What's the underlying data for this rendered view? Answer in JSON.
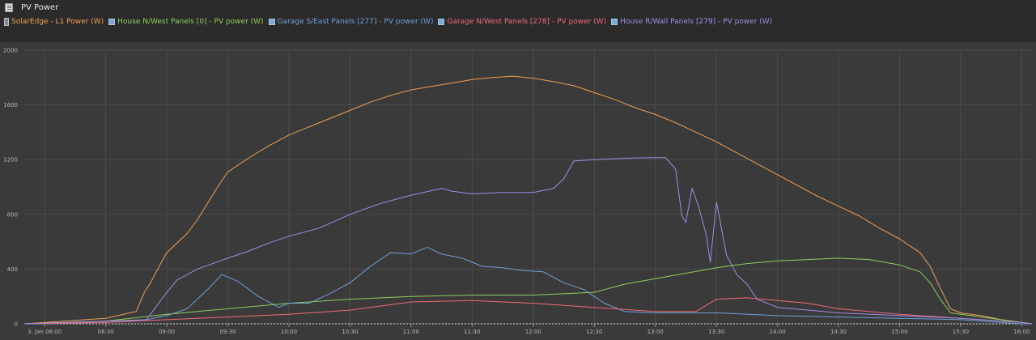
{
  "panel": {
    "title": "PV Power"
  },
  "legend": [
    {
      "label": "SolarEdge - L1 Power (W)",
      "color": "#f0a050",
      "icon": "battery-icon"
    },
    {
      "label": "House N/West Panels [0] - PV power (W)",
      "color": "#8fce5a",
      "icon": "panel-icon"
    },
    {
      "label": "Garage S/East Panels [277] - PV power (W)",
      "color": "#6fa0d8",
      "icon": "panel-icon"
    },
    {
      "label": "Garage N/West Panels [278] - PV power (W)",
      "color": "#f06a78",
      "icon": "panel-icon"
    },
    {
      "label": "House R/Wall Panels [279] - PV power (W)",
      "color": "#9d8fe6",
      "icon": "panel-icon"
    }
  ],
  "chart_data": {
    "type": "line",
    "title": "PV Power",
    "xlabel": "",
    "ylabel": "",
    "ylim": [
      0,
      2000
    ],
    "xlim": [
      "07:50",
      "16:05"
    ],
    "grid": true,
    "legend_position": "top-left",
    "y_ticks": [
      "0",
      "400",
      "800",
      "1200",
      "1600",
      "2000"
    ],
    "x_ticks": [
      "3. Jan 08:00",
      "08:30",
      "09:00",
      "09:30",
      "10:00",
      "10:30",
      "11:00",
      "11:30",
      "12:00",
      "12:30",
      "13:00",
      "13:30",
      "14:00",
      "14:30",
      "15:00",
      "15:30",
      "16:00"
    ],
    "series": [
      {
        "name": "SolarEdge - L1 Power (W)",
        "color": "#f0a050",
        "points": [
          [
            "07:50",
            0
          ],
          [
            "08:30",
            40
          ],
          [
            "08:45",
            90
          ],
          [
            "08:49",
            230
          ],
          [
            "08:52",
            300
          ],
          [
            "08:57",
            440
          ],
          [
            "09:00",
            520
          ],
          [
            "09:05",
            590
          ],
          [
            "09:10",
            660
          ],
          [
            "09:15",
            760
          ],
          [
            "09:20",
            880
          ],
          [
            "09:25",
            1000
          ],
          [
            "09:30",
            1110
          ],
          [
            "09:40",
            1210
          ],
          [
            "09:50",
            1300
          ],
          [
            "10:00",
            1380
          ],
          [
            "10:10",
            1440
          ],
          [
            "10:20",
            1500
          ],
          [
            "10:30",
            1560
          ],
          [
            "10:40",
            1620
          ],
          [
            "10:50",
            1670
          ],
          [
            "11:00",
            1710
          ],
          [
            "11:10",
            1735
          ],
          [
            "11:20",
            1760
          ],
          [
            "11:30",
            1785
          ],
          [
            "11:40",
            1800
          ],
          [
            "11:50",
            1810
          ],
          [
            "12:00",
            1795
          ],
          [
            "12:10",
            1770
          ],
          [
            "12:20",
            1740
          ],
          [
            "12:30",
            1690
          ],
          [
            "12:40",
            1640
          ],
          [
            "12:50",
            1580
          ],
          [
            "13:00",
            1530
          ],
          [
            "13:10",
            1470
          ],
          [
            "13:20",
            1400
          ],
          [
            "13:30",
            1330
          ],
          [
            "13:40",
            1250
          ],
          [
            "13:50",
            1170
          ],
          [
            "14:00",
            1090
          ],
          [
            "14:10",
            1010
          ],
          [
            "14:20",
            930
          ],
          [
            "14:30",
            860
          ],
          [
            "14:40",
            790
          ],
          [
            "14:50",
            700
          ],
          [
            "15:00",
            620
          ],
          [
            "15:10",
            520
          ],
          [
            "15:15",
            420
          ],
          [
            "15:20",
            260
          ],
          [
            "15:25",
            110
          ],
          [
            "15:30",
            80
          ],
          [
            "15:40",
            60
          ],
          [
            "15:50",
            30
          ],
          [
            "16:00",
            10
          ],
          [
            "16:05",
            0
          ]
        ]
      },
      {
        "name": "House N/West Panels [0] - PV power (W)",
        "color": "#8fce5a",
        "points": [
          [
            "07:50",
            0
          ],
          [
            "08:30",
            20
          ],
          [
            "09:00",
            70
          ],
          [
            "09:30",
            110
          ],
          [
            "10:00",
            150
          ],
          [
            "10:30",
            180
          ],
          [
            "11:00",
            200
          ],
          [
            "11:30",
            210
          ],
          [
            "12:00",
            210
          ],
          [
            "12:30",
            230
          ],
          [
            "12:45",
            290
          ],
          [
            "13:00",
            330
          ],
          [
            "13:15",
            370
          ],
          [
            "13:30",
            410
          ],
          [
            "13:45",
            440
          ],
          [
            "14:00",
            460
          ],
          [
            "14:15",
            470
          ],
          [
            "14:30",
            480
          ],
          [
            "14:45",
            470
          ],
          [
            "15:00",
            430
          ],
          [
            "15:10",
            380
          ],
          [
            "15:15",
            300
          ],
          [
            "15:20",
            180
          ],
          [
            "15:25",
            80
          ],
          [
            "15:35",
            60
          ],
          [
            "16:00",
            10
          ],
          [
            "16:05",
            0
          ]
        ]
      },
      {
        "name": "Garage S/East Panels [277] - PV power (W)",
        "color": "#6fa0d8",
        "points": [
          [
            "07:50",
            0
          ],
          [
            "08:30",
            10
          ],
          [
            "08:50",
            30
          ],
          [
            "09:00",
            60
          ],
          [
            "09:10",
            110
          ],
          [
            "09:20",
            250
          ],
          [
            "09:27",
            360
          ],
          [
            "09:35",
            310
          ],
          [
            "09:45",
            200
          ],
          [
            "09:55",
            120
          ],
          [
            "10:00",
            150
          ],
          [
            "10:10",
            150
          ],
          [
            "10:20",
            220
          ],
          [
            "10:30",
            300
          ],
          [
            "10:40",
            420
          ],
          [
            "10:50",
            520
          ],
          [
            "11:00",
            510
          ],
          [
            "11:08",
            560
          ],
          [
            "11:15",
            510
          ],
          [
            "11:25",
            480
          ],
          [
            "11:35",
            420
          ],
          [
            "11:45",
            410
          ],
          [
            "11:55",
            390
          ],
          [
            "12:05",
            380
          ],
          [
            "12:15",
            300
          ],
          [
            "12:25",
            250
          ],
          [
            "12:35",
            150
          ],
          [
            "12:45",
            90
          ],
          [
            "13:00",
            80
          ],
          [
            "13:30",
            80
          ],
          [
            "14:00",
            60
          ],
          [
            "14:30",
            50
          ],
          [
            "15:00",
            40
          ],
          [
            "15:30",
            30
          ],
          [
            "16:00",
            0
          ],
          [
            "16:05",
            0
          ]
        ]
      },
      {
        "name": "Garage N/West Panels [278] - PV power (W)",
        "color": "#f06a78",
        "points": [
          [
            "07:50",
            0
          ],
          [
            "08:30",
            10
          ],
          [
            "09:00",
            30
          ],
          [
            "09:30",
            50
          ],
          [
            "10:00",
            70
          ],
          [
            "10:30",
            100
          ],
          [
            "11:00",
            160
          ],
          [
            "11:30",
            170
          ],
          [
            "12:00",
            150
          ],
          [
            "12:30",
            120
          ],
          [
            "13:00",
            90
          ],
          [
            "13:20",
            90
          ],
          [
            "13:30",
            180
          ],
          [
            "13:45",
            190
          ],
          [
            "14:00",
            170
          ],
          [
            "14:15",
            150
          ],
          [
            "14:30",
            110
          ],
          [
            "15:00",
            70
          ],
          [
            "15:30",
            40
          ],
          [
            "16:00",
            10
          ],
          [
            "16:05",
            0
          ]
        ]
      },
      {
        "name": "House R/Wall Panels [279] - PV power (W)",
        "color": "#9d8fe6",
        "points": [
          [
            "07:50",
            0
          ],
          [
            "08:50",
            30
          ],
          [
            "09:00",
            230
          ],
          [
            "09:05",
            320
          ],
          [
            "09:15",
            400
          ],
          [
            "09:30",
            480
          ],
          [
            "09:40",
            530
          ],
          [
            "09:50",
            590
          ],
          [
            "10:00",
            640
          ],
          [
            "10:15",
            700
          ],
          [
            "10:30",
            800
          ],
          [
            "10:45",
            880
          ],
          [
            "11:00",
            940
          ],
          [
            "11:15",
            990
          ],
          [
            "11:20",
            970
          ],
          [
            "11:25",
            960
          ],
          [
            "11:30",
            950
          ],
          [
            "11:45",
            960
          ],
          [
            "12:00",
            960
          ],
          [
            "12:10",
            990
          ],
          [
            "12:15",
            1060
          ],
          [
            "12:20",
            1190
          ],
          [
            "12:30",
            1200
          ],
          [
            "12:45",
            1210
          ],
          [
            "13:00",
            1215
          ],
          [
            "13:05",
            1215
          ],
          [
            "13:10",
            1130
          ],
          [
            "13:13",
            790
          ],
          [
            "13:15",
            740
          ],
          [
            "13:18",
            990
          ],
          [
            "13:21",
            870
          ],
          [
            "13:25",
            650
          ],
          [
            "13:27",
            450
          ],
          [
            "13:30",
            890
          ],
          [
            "13:35",
            500
          ],
          [
            "13:40",
            360
          ],
          [
            "13:45",
            290
          ],
          [
            "13:50",
            180
          ],
          [
            "14:00",
            120
          ],
          [
            "14:30",
            80
          ],
          [
            "15:00",
            60
          ],
          [
            "15:30",
            40
          ],
          [
            "16:00",
            10
          ],
          [
            "16:05",
            0
          ]
        ]
      }
    ]
  }
}
